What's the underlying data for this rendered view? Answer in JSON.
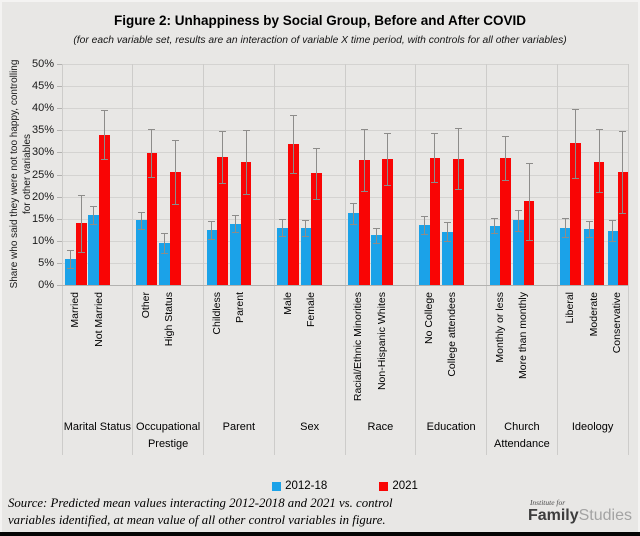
{
  "title": "Figure 2: Unhappiness by Social Group, Before and After COVID",
  "subtitle": "(for each variable set, results are an interaction of variable X time period, with controls for all other variables)",
  "source": {
    "line1": "Source: Predicted mean values interacting 2012-2018 and 2021 vs. control",
    "line2": "variables identified, at mean value of all other control variables in figure."
  },
  "logo": {
    "top": "Institute for",
    "bold": "Family",
    "light": "Studies"
  },
  "chart_data": {
    "type": "bar",
    "units": "%",
    "ylabel": "Share who said they were not too happy, controlling for other variables",
    "ylim": [
      0,
      50
    ],
    "ytick_step": 5,
    "grid": true,
    "legend_position": "bottom",
    "error_bars": true,
    "series_names": [
      "2012-18",
      "2021"
    ],
    "legend": [
      {
        "name": "2012-18",
        "color": "#1ba2e8"
      },
      {
        "name": "2021",
        "color": "#f90505"
      }
    ],
    "groups": [
      {
        "label": "Marital Status",
        "label_lines": [
          "Marital Status"
        ],
        "categories": [
          {
            "label": "Married",
            "values": [
              5.8,
              14.0
            ],
            "ci": [
              [
                3.8,
                8.0
              ],
              [
                7.5,
                20.4
              ]
            ]
          },
          {
            "label": "Not Married",
            "values": [
              15.9,
              33.9
            ],
            "ci": [
              [
                13.9,
                17.9
              ],
              [
                28.4,
                39.5
              ]
            ]
          }
        ]
      },
      {
        "label": "Occupational Prestige",
        "label_lines": [
          "Occupational",
          "Prestige"
        ],
        "categories": [
          {
            "label": "Other",
            "values": [
              14.6,
              29.9
            ],
            "ci": [
              [
                12.6,
                16.5
              ],
              [
                24.4,
                35.3
              ]
            ]
          },
          {
            "label": "High Status",
            "values": [
              9.5,
              25.5
            ],
            "ci": [
              [
                7.3,
                11.8
              ],
              [
                18.4,
                32.7
              ]
            ]
          }
        ]
      },
      {
        "label": "Parent",
        "label_lines": [
          "Parent"
        ],
        "categories": [
          {
            "label": "Childless",
            "values": [
              12.4,
              28.9
            ],
            "ci": [
              [
                10.4,
                14.4
              ],
              [
                23.0,
                34.8
              ]
            ]
          },
          {
            "label": "Parent",
            "values": [
              13.9,
              27.8
            ],
            "ci": [
              [
                11.9,
                15.9
              ],
              [
                20.6,
                35.0
              ]
            ]
          }
        ]
      },
      {
        "label": "Sex",
        "label_lines": [
          "Sex"
        ],
        "categories": [
          {
            "label": "Male",
            "values": [
              13.0,
              31.9
            ],
            "ci": [
              [
                11.1,
                15.0
              ],
              [
                25.3,
                38.5
              ]
            ]
          },
          {
            "label": "Female",
            "values": [
              12.9,
              25.4
            ],
            "ci": [
              [
                11.0,
                14.8
              ],
              [
                19.4,
                31.1
              ]
            ]
          }
        ]
      },
      {
        "label": "Race",
        "label_lines": [
          "Race"
        ],
        "categories": [
          {
            "label": "Racial/Ethnic Minorities",
            "values": [
              16.3,
              28.3
            ],
            "ci": [
              [
                13.9,
                18.6
              ],
              [
                21.3,
                35.3
              ]
            ]
          },
          {
            "label": "Non-Hispanic Whites",
            "values": [
              11.3,
              28.6
            ],
            "ci": [
              [
                9.6,
                13.0
              ],
              [
                22.6,
                34.5
              ]
            ]
          }
        ]
      },
      {
        "label": "Education",
        "label_lines": [
          "Education"
        ],
        "categories": [
          {
            "label": "No College",
            "values": [
              13.6,
              28.7
            ],
            "ci": [
              [
                11.5,
                15.6
              ],
              [
                23.2,
                34.4
              ]
            ]
          },
          {
            "label": "College attendees",
            "values": [
              12.1,
              28.5
            ],
            "ci": [
              [
                9.9,
                14.3
              ],
              [
                21.7,
                35.5
              ]
            ]
          }
        ]
      },
      {
        "label": "Church Attendance",
        "label_lines": [
          "Church",
          "Attendance"
        ],
        "categories": [
          {
            "label": "Monthly or less",
            "values": [
              13.4,
              28.7
            ],
            "ci": [
              [
                11.7,
                15.2
              ],
              [
                23.8,
                33.8
              ]
            ]
          },
          {
            "label": "More than monthly",
            "values": [
              14.6,
              18.9
            ],
            "ci": [
              [
                12.2,
                17.0
              ],
              [
                10.2,
                27.5
              ]
            ]
          }
        ]
      },
      {
        "label": "Ideology",
        "label_lines": [
          "Ideology"
        ],
        "categories": [
          {
            "label": "Liberal",
            "values": [
              13.0,
              32.1
            ],
            "ci": [
              [
                10.9,
                15.2
              ],
              [
                24.3,
                39.8
              ]
            ]
          },
          {
            "label": "Moderate",
            "values": [
              12.7,
              27.9
            ],
            "ci": [
              [
                10.9,
                14.5
              ],
              [
                21.0,
                35.2
              ]
            ]
          },
          {
            "label": "Conservative",
            "values": [
              12.3,
              25.5
            ],
            "ci": [
              [
                9.9,
                14.7
              ],
              [
                16.2,
                34.9
              ]
            ]
          }
        ]
      }
    ]
  }
}
